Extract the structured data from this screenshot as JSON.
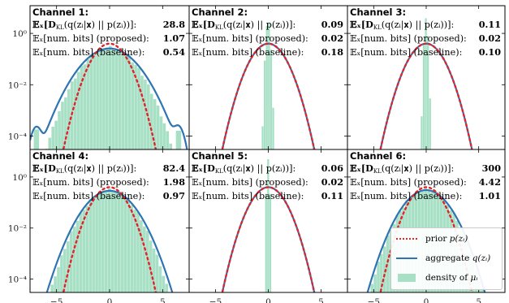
{
  "chart_data": {
    "type": "line",
    "layout": "2x3 grid of log-scale density panels",
    "shared_x": {
      "ticks": [
        -5,
        0,
        5
      ],
      "tick_labels": [
        "−5",
        "0",
        "5"
      ],
      "xlim": [
        -7.5,
        7.5
      ]
    },
    "shared_y": {
      "scale": "log",
      "ticks": [
        1,
        0.01,
        0.0001
      ],
      "tick_labels": [
        "10⁰",
        "10⁻²",
        "10⁻⁴"
      ],
      "ylim": [
        3e-05,
        12
      ]
    },
    "legend": {
      "placement": "lower-right of panel 6",
      "entries": [
        {
          "key": "prior",
          "label_text": "prior ",
          "label_math": "p(zᵢ)",
          "style": "dotted",
          "color": "#e0242a"
        },
        {
          "key": "aggregate",
          "label_text": "aggregate ",
          "label_math": "q(zᵢ)",
          "style": "solid",
          "color": "#2f74b2"
        },
        {
          "key": "density",
          "label_text": "density of ",
          "label_math": "μᵢ",
          "style": "filled",
          "color": "#a8e0c6"
        }
      ]
    },
    "row_labels": {
      "kl": "𝔼ₓ[D",
      "kl_sub": "KL",
      "kl_rest": "(q(zᵢ|𝐱) || p(zᵢ))]:",
      "proposed": "𝔼ₓ[num. bits] (proposed):",
      "baseline": "𝔼ₓ[num. bits] (baseline):"
    },
    "panels": [
      {
        "title": "Channel 1:",
        "kl": "28.8",
        "proposed": "1.07",
        "baseline": "0.54",
        "agg_std": 1.55,
        "hist_std": 1.4,
        "hist_tail": true
      },
      {
        "title": "Channel 2:",
        "kl": "0.09",
        "proposed": "0.02",
        "baseline": "0.18",
        "agg_std": 1.0,
        "hist_std": 0.12,
        "hist_tail": false
      },
      {
        "title": "Channel 3:",
        "kl": "0.11",
        "proposed": "0.02",
        "baseline": "0.10",
        "agg_std": 1.0,
        "hist_std": 0.1,
        "hist_tail": false
      },
      {
        "title": "Channel 4:",
        "kl": "82.4",
        "proposed": "1.98",
        "baseline": "0.97",
        "agg_std": 1.38,
        "hist_std": 1.3,
        "hist_tail": false
      },
      {
        "title": "Channel 5:",
        "kl": "0.06",
        "proposed": "0.02",
        "baseline": "0.11",
        "agg_std": 1.0,
        "hist_std": 0.08,
        "hist_tail": false
      },
      {
        "title": "Channel 6:",
        "kl": "300",
        "proposed": "4.42",
        "baseline": "1.01",
        "agg_std": 1.3,
        "hist_std": 1.25,
        "hist_tail": false
      }
    ]
  }
}
